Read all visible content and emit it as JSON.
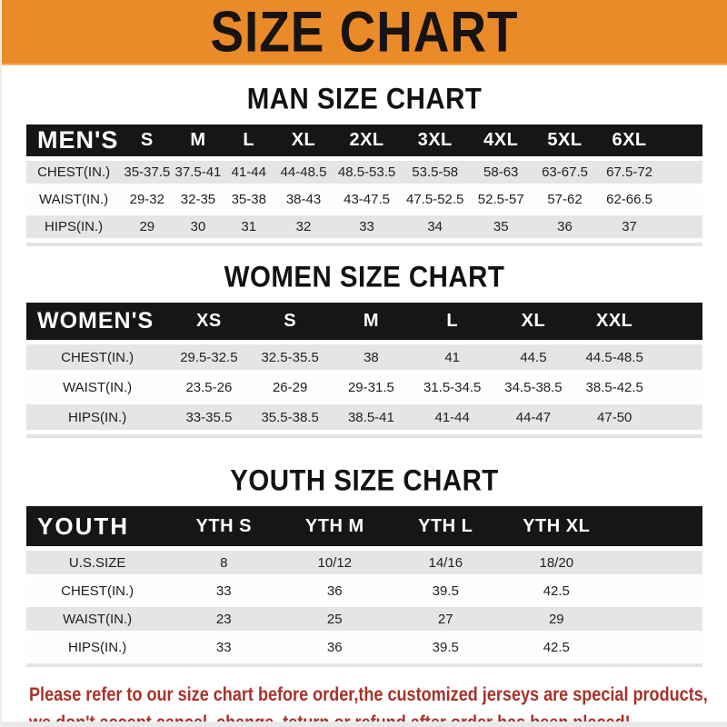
{
  "banner": {
    "title": "SIZE CHART",
    "bg_color": "#EA8A28",
    "text_color": "#171310"
  },
  "colors": {
    "header_bar": "#161616",
    "header_text": "#ffffff",
    "row_gray": "#E5E5E5",
    "row_white": "#FDFDFD",
    "notice_red": "#A93128"
  },
  "sections": [
    {
      "heading": "MAN SIZE CHART",
      "header_label": "MEN'S",
      "columns": [
        "S",
        "M",
        "L",
        "XL",
        "2XL",
        "3XL",
        "4XL",
        "5XL",
        "6XL"
      ],
      "rows": [
        {
          "label": "CHEST(IN.)",
          "values": [
            "35-37.5",
            "37.5-41",
            "41-44",
            "44-48.5",
            "48.5-53.5",
            "53.5-58",
            "58-63",
            "63-67.5",
            "67.5-72"
          ]
        },
        {
          "label": "WAIST(IN.)",
          "values": [
            "29-32",
            "32-35",
            "35-38",
            "38-43",
            "43-47.5",
            "47.5-52.5",
            "52.5-57",
            "57-62",
            "62-66.5"
          ]
        },
        {
          "label": "HIPS(IN.)",
          "values": [
            "29",
            "30",
            "31",
            "32",
            "33",
            "34",
            "35",
            "36",
            "37"
          ]
        }
      ]
    },
    {
      "heading": "WOMEN SIZE CHART",
      "header_label": "WOMEN'S",
      "columns": [
        "XS",
        "S",
        "M",
        "L",
        "XL",
        "XXL"
      ],
      "rows": [
        {
          "label": "CHEST(IN.)",
          "values": [
            "29.5-32.5",
            "32.5-35.5",
            "38",
            "41",
            "44.5",
            "44.5-48.5"
          ]
        },
        {
          "label": "WAIST(IN.)",
          "values": [
            "23.5-26",
            "26-29",
            "29-31.5",
            "31.5-34.5",
            "34.5-38.5",
            "38.5-42.5"
          ]
        },
        {
          "label": "HIPS(IN.)",
          "values": [
            "33-35.5",
            "35.5-38.5",
            "38.5-41",
            "41-44",
            "44-47",
            "47-50"
          ]
        }
      ]
    },
    {
      "heading": "YOUTH SIZE CHART",
      "header_label": "YOUTH",
      "columns": [
        "YTH S",
        "YTH M",
        "YTH L",
        "YTH XL"
      ],
      "rows": [
        {
          "label": "U.S.SIZE",
          "values": [
            "8",
            "10/12",
            "14/16",
            "18/20"
          ]
        },
        {
          "label": "CHEST(IN.)",
          "values": [
            "33",
            "36",
            "39.5",
            "42.5"
          ]
        },
        {
          "label": "WAIST(IN.)",
          "values": [
            "23",
            "25",
            "27",
            "29"
          ]
        },
        {
          "label": "HIPS(IN.)",
          "values": [
            "33",
            "36",
            "39.5",
            "42.5"
          ]
        }
      ]
    }
  ],
  "footer": {
    "line1": "Please refer to our size chart before order,the customized jerseys are special products,",
    "line2": "we don't accept cancel, change, teturn or refund after order has been placed!"
  }
}
